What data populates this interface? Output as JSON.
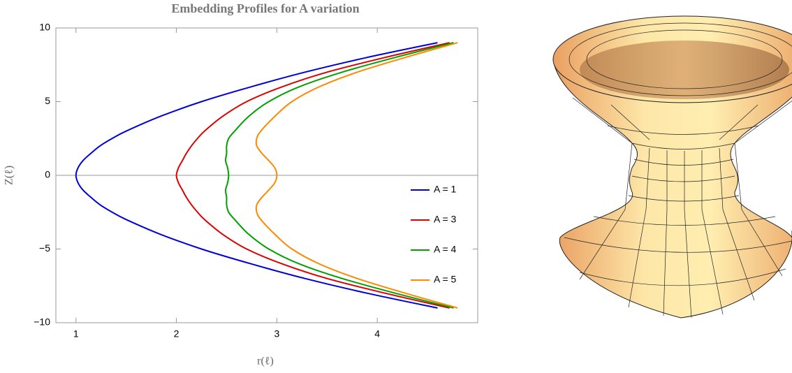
{
  "chart_data": {
    "type": "line",
    "title": "Embedding Profiles for A variation",
    "xlabel": "r(ℓ)",
    "ylabel": "Z(ℓ)",
    "y": [
      -9,
      -8,
      -7,
      -6,
      -5,
      -4,
      -3,
      -2.5,
      -2,
      -1.5,
      -1,
      -0.5,
      0,
      0.5,
      1,
      1.5,
      2,
      2.5,
      3,
      4,
      5,
      6,
      7,
      8,
      9
    ],
    "series": [
      {
        "name": "A = 1",
        "color": "#0000dd",
        "values": [
          4.6,
          3.9,
          3.28,
          2.74,
          2.25,
          1.84,
          1.5,
          1.36,
          1.24,
          1.15,
          1.07,
          1.02,
          1.0,
          1.02,
          1.07,
          1.15,
          1.24,
          1.36,
          1.5,
          1.84,
          2.25,
          2.74,
          3.28,
          3.9,
          4.6
        ]
      },
      {
        "name": "A = 3",
        "color": "#dd0000",
        "values": [
          4.72,
          4.08,
          3.5,
          3.05,
          2.7,
          2.46,
          2.28,
          2.21,
          2.15,
          2.1,
          2.06,
          2.02,
          2.0,
          2.02,
          2.06,
          2.1,
          2.15,
          2.21,
          2.28,
          2.46,
          2.7,
          3.05,
          3.5,
          4.08,
          4.72
        ]
      },
      {
        "name": "A = 4",
        "color": "#00a000",
        "values": [
          4.76,
          4.18,
          3.65,
          3.22,
          2.92,
          2.72,
          2.58,
          2.52,
          2.5,
          2.5,
          2.49,
          2.51,
          2.52,
          2.51,
          2.49,
          2.5,
          2.5,
          2.52,
          2.58,
          2.72,
          2.92,
          3.22,
          3.65,
          4.18,
          4.76
        ]
      },
      {
        "name": "A = 5",
        "color": "#ff8800",
        "values": [
          4.8,
          4.28,
          3.8,
          3.42,
          3.15,
          2.98,
          2.84,
          2.8,
          2.8,
          2.85,
          2.92,
          2.98,
          3.0,
          2.98,
          2.92,
          2.85,
          2.8,
          2.8,
          2.84,
          2.98,
          3.15,
          3.42,
          3.8,
          4.28,
          4.8
        ]
      }
    ],
    "xlim": [
      0.8,
      5.0
    ],
    "ylim": [
      -10,
      10
    ],
    "xticks": [
      1,
      2,
      3,
      4
    ],
    "yticks": [
      -10,
      -5,
      0,
      5,
      10
    ],
    "axis_line": 0
  }
}
